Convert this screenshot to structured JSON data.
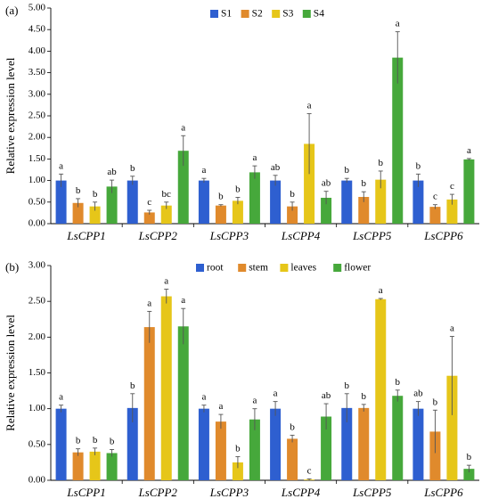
{
  "chart_data": [
    {
      "type": "bar",
      "panel": "(a)",
      "ylabel": "Relative expression level",
      "ylim": [
        0,
        5
      ],
      "yticks": [
        "0.00",
        "0.50",
        "1.00",
        "1.50",
        "2.00",
        "2.50",
        "3.00",
        "3.50",
        "4.00",
        "4.50",
        "5.00"
      ],
      "categories": [
        "LsCPP1",
        "LsCPP2",
        "LsCPP3",
        "LsCPP4",
        "LsCPP5",
        "LsCPP6"
      ],
      "legend_position": "top-center",
      "series": [
        {
          "name": "S1",
          "color": "#2e5fd0",
          "values": [
            1.0,
            1.0,
            1.0,
            1.0,
            1.0,
            1.0
          ],
          "errors": [
            0.15,
            0.1,
            0.05,
            0.12,
            0.05,
            0.15
          ],
          "labels": [
            "a",
            "b",
            "a",
            "ab",
            "b",
            "b"
          ]
        },
        {
          "name": "S2",
          "color": "#e08a2c",
          "values": [
            0.48,
            0.26,
            0.42,
            0.4,
            0.62,
            0.39
          ],
          "errors": [
            0.1,
            0.05,
            0.02,
            0.1,
            0.12,
            0.05
          ],
          "labels": [
            "b",
            "c",
            "b",
            "b",
            "b",
            "c"
          ]
        },
        {
          "name": "S3",
          "color": "#e6c619",
          "values": [
            0.4,
            0.42,
            0.53,
            1.85,
            1.02,
            0.56
          ],
          "errors": [
            0.1,
            0.08,
            0.08,
            0.7,
            0.2,
            0.12
          ],
          "labels": [
            "b",
            "bc",
            "b",
            "a",
            "b",
            "c"
          ]
        },
        {
          "name": "S4",
          "color": "#46a83b",
          "values": [
            0.86,
            1.69,
            1.19,
            0.6,
            3.85,
            1.49
          ],
          "errors": [
            0.15,
            0.35,
            0.15,
            0.15,
            0.6,
            0.02
          ],
          "labels": [
            "ab",
            "a",
            "a",
            "ab",
            "a",
            "a"
          ]
        }
      ]
    },
    {
      "type": "bar",
      "panel": "(b)",
      "ylabel": "Relative expression level",
      "ylim": [
        0,
        3
      ],
      "yticks": [
        "0.00",
        "0.50",
        "1.00",
        "1.50",
        "2.00",
        "2.50",
        "3.00"
      ],
      "categories": [
        "LsCPP1",
        "LsCPP2",
        "LsCPP3",
        "LsCPP4",
        "LsCPP5",
        "LsCPP6"
      ],
      "legend_position": "top-center",
      "series": [
        {
          "name": "root",
          "color": "#2e5fd0",
          "values": [
            1.0,
            1.01,
            1.0,
            1.0,
            1.01,
            1.0
          ],
          "errors": [
            0.05,
            0.2,
            0.05,
            0.1,
            0.2,
            0.1
          ],
          "labels": [
            "a",
            "b",
            "a",
            "a",
            "b",
            "ab"
          ]
        },
        {
          "name": "stem",
          "color": "#e08a2c",
          "values": [
            0.39,
            2.14,
            0.82,
            0.58,
            1.01,
            0.68
          ],
          "errors": [
            0.05,
            0.22,
            0.1,
            0.05,
            0.05,
            0.3
          ],
          "labels": [
            "b",
            "a",
            "a",
            "b",
            "b",
            "b"
          ]
        },
        {
          "name": "leaves",
          "color": "#e6c619",
          "values": [
            0.4,
            2.57,
            0.25,
            0.01,
            2.53,
            1.46
          ],
          "errors": [
            0.05,
            0.1,
            0.08,
            0.01,
            0.01,
            0.55
          ],
          "labels": [
            "b",
            "a",
            "b",
            "c",
            "a",
            "a"
          ]
        },
        {
          "name": "flower",
          "color": "#46a83b",
          "values": [
            0.38,
            2.15,
            0.85,
            0.89,
            1.18,
            0.16
          ],
          "errors": [
            0.05,
            0.25,
            0.15,
            0.18,
            0.08,
            0.05
          ],
          "labels": [
            "b",
            "a",
            "a",
            "ab",
            "b",
            "b"
          ]
        }
      ]
    }
  ]
}
